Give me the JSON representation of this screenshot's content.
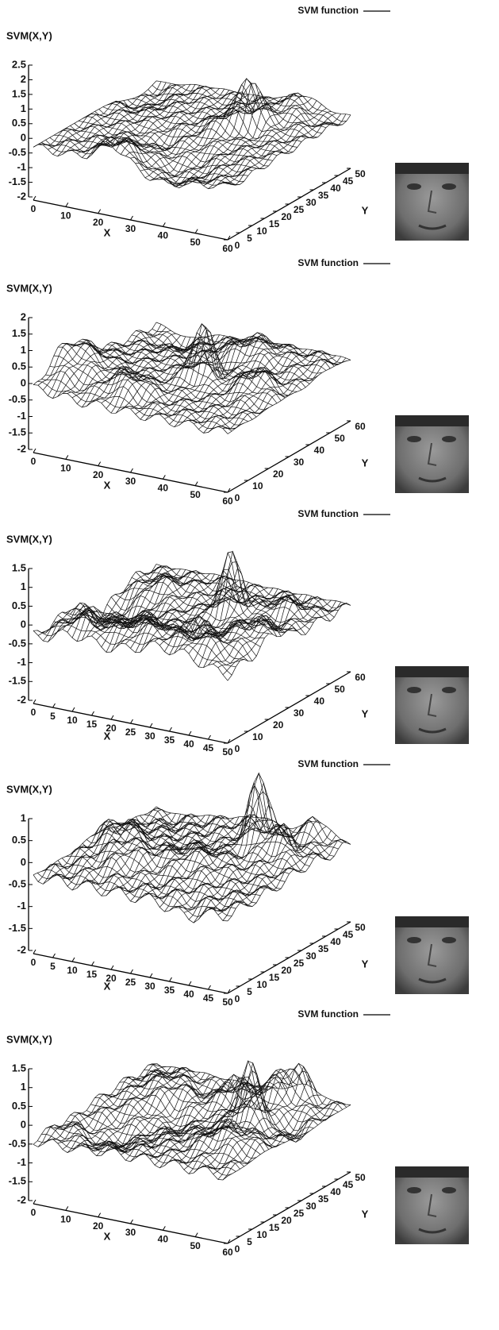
{
  "chart_data": [
    {
      "type": "surface3d",
      "legend": "SVM function",
      "zlabel": "SVM(X,Y)",
      "xlabel": "X",
      "ylabel": "Y",
      "zticks": [
        -2,
        -1.5,
        -1,
        -0.5,
        0,
        0.5,
        1,
        1.5,
        2,
        2.5
      ],
      "zlim": [
        -2,
        2.5
      ],
      "xticks": [
        0,
        10,
        20,
        30,
        40,
        50,
        60
      ],
      "xlim": [
        0,
        60
      ],
      "yticks": [
        0,
        5,
        10,
        15,
        20,
        25,
        30,
        35,
        40,
        45,
        50
      ],
      "ylim": [
        0,
        50
      ]
    },
    {
      "type": "surface3d",
      "legend": "SVM function",
      "zlabel": "SVM(X,Y)",
      "xlabel": "X",
      "ylabel": "Y",
      "zticks": [
        -2,
        -1.5,
        -1,
        -0.5,
        0,
        0.5,
        1,
        1.5,
        2
      ],
      "zlim": [
        -2,
        2
      ],
      "xticks": [
        0,
        10,
        20,
        30,
        40,
        50,
        60
      ],
      "xlim": [
        0,
        60
      ],
      "yticks": [
        0,
        10,
        20,
        30,
        40,
        50,
        60
      ],
      "ylim": [
        0,
        60
      ]
    },
    {
      "type": "surface3d",
      "legend": "SVM function",
      "zlabel": "SVM(X,Y)",
      "xlabel": "X",
      "ylabel": "Y",
      "zticks": [
        -2,
        -1.5,
        -1,
        -0.5,
        0,
        0.5,
        1,
        1.5
      ],
      "zlim": [
        -2,
        1.5
      ],
      "xticks": [
        0,
        5,
        10,
        15,
        20,
        25,
        30,
        35,
        40,
        45,
        50
      ],
      "xlim": [
        0,
        50
      ],
      "yticks": [
        0,
        10,
        20,
        30,
        40,
        50,
        60
      ],
      "ylim": [
        0,
        60
      ]
    },
    {
      "type": "surface3d",
      "legend": "SVM function",
      "zlabel": "SVM(X,Y)",
      "xlabel": "X",
      "ylabel": "Y",
      "zticks": [
        -2,
        -1.5,
        -1,
        -0.5,
        0,
        0.5,
        1
      ],
      "zlim": [
        -2,
        1
      ],
      "xticks": [
        0,
        5,
        10,
        15,
        20,
        25,
        30,
        35,
        40,
        45,
        50
      ],
      "xlim": [
        0,
        50
      ],
      "yticks": [
        0,
        5,
        10,
        15,
        20,
        25,
        30,
        35,
        40,
        45,
        50
      ],
      "ylim": [
        0,
        50
      ]
    },
    {
      "type": "surface3d",
      "legend": "SVM function",
      "zlabel": "SVM(X,Y)",
      "xlabel": "X",
      "ylabel": "Y",
      "zticks": [
        -2,
        -1.5,
        -1,
        -0.5,
        0,
        0.5,
        1,
        1.5
      ],
      "zlim": [
        -2,
        1.5
      ],
      "xticks": [
        0,
        10,
        20,
        30,
        40,
        50,
        60
      ],
      "xlim": [
        0,
        60
      ],
      "yticks": [
        0,
        5,
        10,
        15,
        20,
        25,
        30,
        35,
        40,
        45,
        50
      ],
      "ylim": [
        0,
        50
      ]
    }
  ]
}
